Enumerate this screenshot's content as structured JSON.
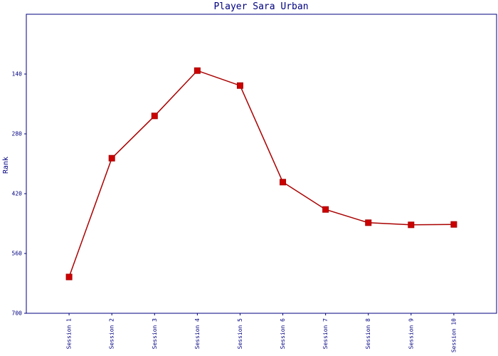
{
  "chart_data": {
    "type": "line",
    "title": "Player Sara Urban",
    "y_label": "Rank",
    "categories": [
      "Session 1",
      "Session 2",
      "Session 3",
      "Session 4",
      "Session 5",
      "Session 6",
      "Session 7",
      "Session 8",
      "Session 9",
      "Session 10"
    ],
    "series": [
      {
        "name": "Rank",
        "color": "#aa0000",
        "values": [
          615,
          337,
          238,
          132,
          167,
          393,
          457,
          488,
          493,
          492
        ]
      }
    ],
    "ylim": [
      700,
      0
    ],
    "yticks": [
      140,
      280,
      420,
      560,
      700
    ]
  }
}
